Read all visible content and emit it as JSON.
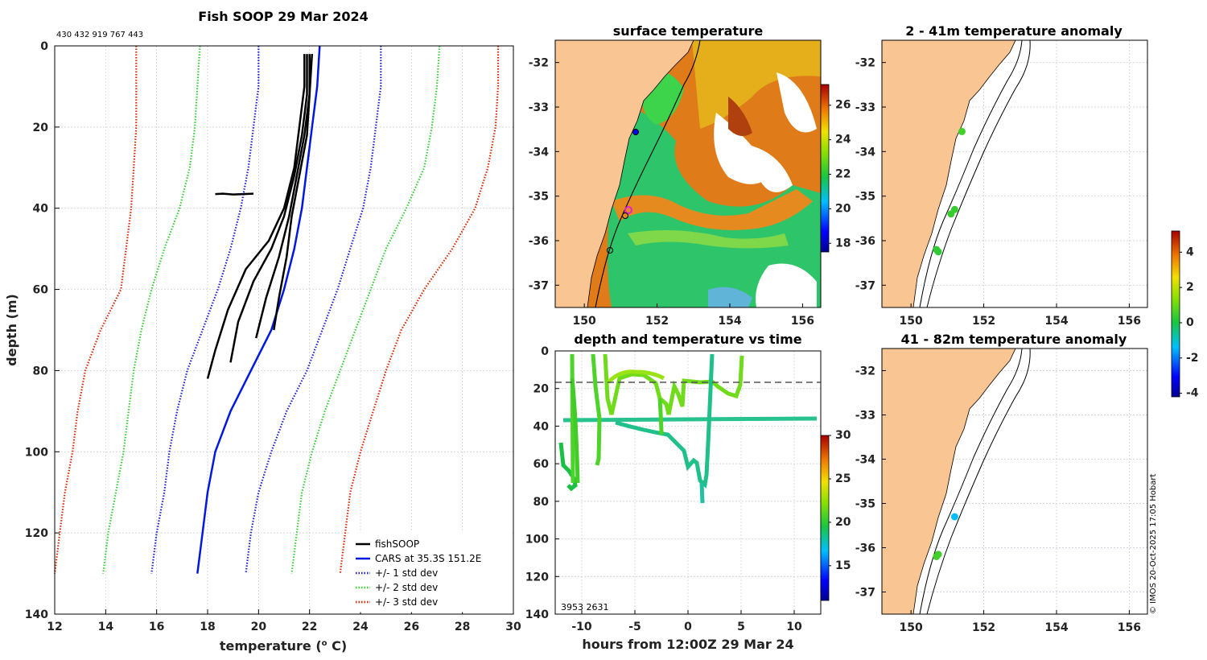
{
  "colors": {
    "land": "#f9c693",
    "ocean_warm": "#e07b1a",
    "ocean_cool": "#3cc23c",
    "cars": "#0018e0",
    "std1": "#1a1ad8",
    "std2": "#33cc33",
    "std3": "#dd2200"
  },
  "chart_data": [
    {
      "id": "profile",
      "type": "line",
      "title": "Fish SOOP 29 Mar 2024",
      "ids_text": "430 432 919 767 443",
      "xlabel": "temperature (",
      "xlabel_sup": "o",
      "xlabel_end": " C)",
      "ylabel": "depth (m)",
      "xlim": [
        12,
        30
      ],
      "ylim": [
        0,
        140
      ],
      "xticks": [
        12,
        14,
        16,
        18,
        20,
        22,
        24,
        26,
        28,
        30
      ],
      "yticks": [
        0,
        20,
        40,
        60,
        80,
        100,
        120,
        140
      ],
      "depths": [
        0,
        10,
        20,
        30,
        40,
        50,
        60,
        70,
        80,
        90,
        100,
        110,
        120,
        130
      ],
      "series": [
        {
          "name": "CARS at 35.3S 151.2E",
          "style": "solid",
          "color": "#0018e0",
          "values": [
            22.4,
            22.3,
            22.1,
            21.9,
            21.7,
            21.4,
            21.0,
            20.5,
            19.7,
            18.9,
            18.3,
            18.0,
            17.8,
            17.6
          ]
        },
        {
          "name": "-1std",
          "style": "dot",
          "color": "#1a1ad8",
          "values": [
            20.0,
            20.0,
            19.8,
            19.6,
            19.3,
            18.9,
            18.4,
            17.8,
            17.2,
            16.8,
            16.5,
            16.3,
            16.0,
            15.8
          ]
        },
        {
          "name": "+1std",
          "style": "dot",
          "color": "#1a1ad8",
          "values": [
            24.8,
            24.8,
            24.6,
            24.4,
            24.1,
            23.6,
            23.1,
            22.5,
            21.9,
            21.1,
            20.5,
            20.0,
            19.7,
            19.5
          ]
        },
        {
          "name": "-2std",
          "style": "dot",
          "color": "#33cc33",
          "values": [
            17.7,
            17.6,
            17.5,
            17.3,
            16.9,
            16.3,
            15.8,
            15.4,
            15.1,
            14.9,
            14.7,
            14.4,
            14.1,
            13.9
          ]
        },
        {
          "name": "+2std",
          "style": "dot",
          "color": "#33cc33",
          "values": [
            27.1,
            27.0,
            26.8,
            26.5,
            25.8,
            25.0,
            24.4,
            23.8,
            23.2,
            22.6,
            22.1,
            21.7,
            21.5,
            21.3
          ]
        },
        {
          "name": "-3std",
          "style": "dot",
          "color": "#dd2200",
          "values": [
            15.2,
            15.2,
            15.2,
            15.1,
            15.0,
            14.8,
            14.6,
            13.8,
            13.2,
            12.9,
            12.7,
            12.4,
            12.2,
            12.0
          ]
        },
        {
          "name": "+3std",
          "style": "dot",
          "color": "#dd2200",
          "values": [
            29.4,
            29.4,
            29.3,
            29.0,
            28.5,
            27.6,
            26.5,
            25.6,
            25.0,
            24.5,
            24.0,
            23.6,
            23.4,
            23.2
          ]
        }
      ],
      "fish_profiles": [
        {
          "depths": [
            2,
            10,
            20,
            30,
            40,
            48,
            55,
            65,
            75,
            82
          ],
          "values": [
            21.8,
            21.8,
            21.6,
            21.4,
            21.0,
            20.4,
            19.5,
            18.8,
            18.3,
            18.0
          ]
        },
        {
          "depths": [
            2,
            12,
            22,
            32,
            42,
            50,
            58,
            68,
            78
          ],
          "values": [
            21.9,
            21.9,
            21.7,
            21.4,
            21.0,
            20.5,
            19.8,
            19.2,
            18.9
          ]
        },
        {
          "depths": [
            2,
            12,
            22,
            32,
            42,
            52,
            62,
            72
          ],
          "values": [
            22.0,
            22.0,
            21.8,
            21.5,
            21.2,
            20.8,
            20.3,
            19.9
          ]
        },
        {
          "depths": [
            2,
            12,
            22,
            32,
            42,
            52,
            62,
            70
          ],
          "values": [
            22.1,
            22.0,
            21.9,
            21.6,
            21.3,
            21.1,
            20.8,
            20.6
          ]
        },
        {
          "depths": [
            36.5,
            36.4,
            36.6,
            36.5,
            36.4
          ],
          "values": [
            18.3,
            18.6,
            19.0,
            19.4,
            19.8
          ]
        }
      ],
      "legend": [
        {
          "label": "fishSOOP",
          "color": "#000000",
          "style": "solid"
        },
        {
          "label": "CARS at 35.3S 151.2E",
          "color": "#0018e0",
          "style": "solid"
        },
        {
          "label": "+/- 1 std dev",
          "color": "#1a1ad8",
          "style": "dot"
        },
        {
          "label": "+/- 2 std dev",
          "color": "#33cc33",
          "style": "dot"
        },
        {
          "label": "+/- 3 std dev",
          "color": "#dd2200",
          "style": "dot"
        }
      ]
    },
    {
      "id": "sst_map",
      "type": "heatmap",
      "title": "surface temperature",
      "xlim": [
        149.2,
        156.5
      ],
      "ylim": [
        -37.5,
        -31.5
      ],
      "xticks": [
        150,
        152,
        154,
        156
      ],
      "yticks": [
        -32,
        -33,
        -34,
        -35,
        -36,
        -37
      ],
      "colorbar": {
        "min": 17.5,
        "max": 27.2,
        "ticks": [
          18,
          20,
          22,
          24,
          26
        ]
      }
    },
    {
      "id": "anom_2_41",
      "type": "scatter",
      "title": "2 - 41m temperature anomaly",
      "xlim": [
        149.2,
        156.5
      ],
      "ylim": [
        -37.5,
        -31.5
      ],
      "xticks": [
        150,
        152,
        154,
        156
      ],
      "yticks": [
        -32,
        -33,
        -34,
        -35,
        -36,
        -37
      ],
      "points": [
        {
          "lon": 151.4,
          "lat": -33.55,
          "val": 0.5
        },
        {
          "lon": 151.2,
          "lat": -35.3,
          "val": 0.4
        },
        {
          "lon": 151.1,
          "lat": -35.4,
          "val": 0.4
        },
        {
          "lon": 150.7,
          "lat": -36.2,
          "val": 0.3
        },
        {
          "lon": 150.75,
          "lat": -36.25,
          "val": 0.3
        }
      ]
    },
    {
      "id": "anom_41_82",
      "type": "scatter",
      "title": "41 - 82m temperature anomaly",
      "xlim": [
        149.2,
        156.5
      ],
      "ylim": [
        -37.5,
        -31.5
      ],
      "xticks": [
        150,
        152,
        154,
        156
      ],
      "yticks": [
        -32,
        -33,
        -34,
        -35,
        -36,
        -37
      ],
      "points": [
        {
          "lon": 151.2,
          "lat": -35.3,
          "val": -1.4
        },
        {
          "lon": 150.7,
          "lat": -36.2,
          "val": 0.5
        },
        {
          "lon": 150.75,
          "lat": -36.15,
          "val": 0.5
        }
      ],
      "colorbar": {
        "min": -4.2,
        "max": 5.2,
        "ticks": [
          -4,
          -2,
          0,
          2,
          4
        ]
      }
    },
    {
      "id": "depth_time",
      "type": "scatter",
      "title": "depth and temperature vs time",
      "xlabel": "hours from 12:00Z 29 Mar 24",
      "xlim": [
        -12.5,
        12.5
      ],
      "ylim": [
        0,
        140
      ],
      "xticks": [
        -10,
        -5,
        0,
        5,
        10
      ],
      "yticks": [
        0,
        20,
        40,
        60,
        80,
        100,
        120,
        140
      ],
      "reference_depth": 17,
      "footer_text": "3953  2631",
      "colorbar": {
        "min": 11,
        "max": 30,
        "ticks": [
          15,
          20,
          25,
          30
        ]
      }
    }
  ],
  "watermark": "© IMOS 20-Oct-2025 17:05 Hobart"
}
